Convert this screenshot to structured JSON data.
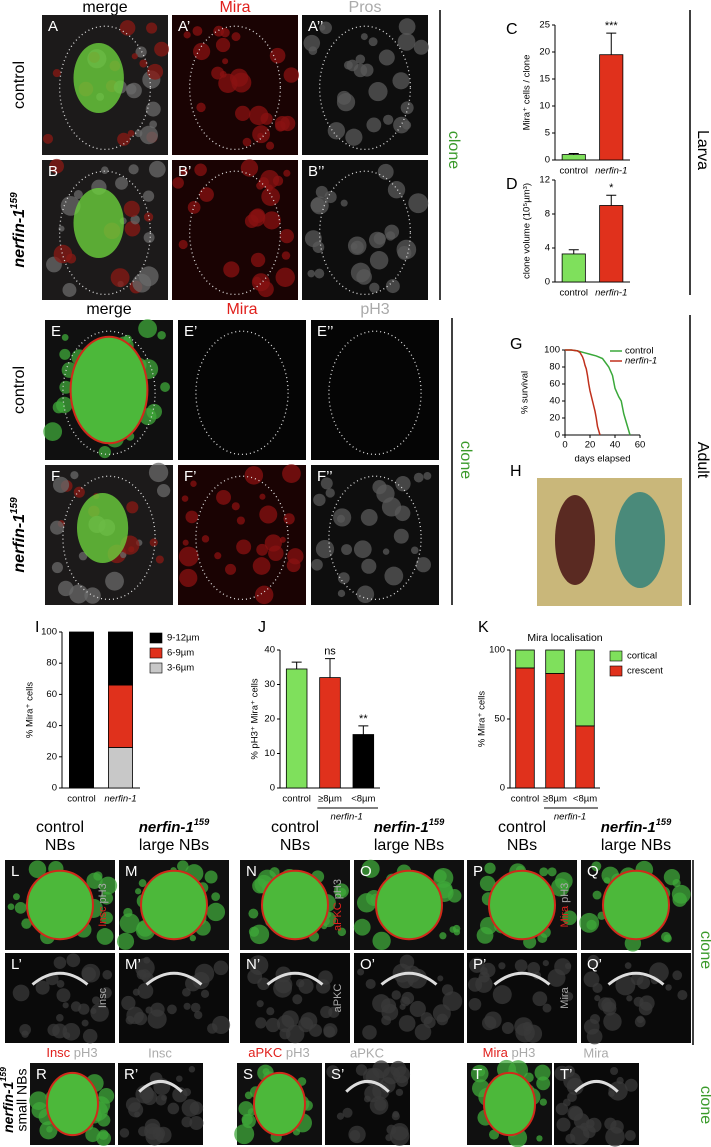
{
  "top": {
    "headers": [
      "merge",
      "Mira",
      "Pros"
    ],
    "panels": [
      "A",
      "A’",
      "A’’",
      "B",
      "B’",
      "B’’"
    ],
    "rows": [
      {
        "text": "control"
      },
      {
        "gene": "nerfin-1",
        "allele": "159"
      }
    ],
    "side": "clone",
    "stage": "Larva"
  },
  "middle": {
    "headers": [
      "merge",
      "Mira",
      "pH3"
    ],
    "panels": [
      "E",
      "E’",
      "E’’",
      "F",
      "F’",
      "F’’"
    ],
    "rows": [
      {
        "text": "control"
      },
      {
        "gene": "nerfin-1",
        "allele": "159"
      }
    ],
    "side": "clone",
    "stage": "Adult",
    "photo": "H"
  },
  "bottom": {
    "headers": [
      {
        "line1": "control",
        "line2": "NBs"
      },
      {
        "gene": "nerfin-1",
        "allele": "159",
        "line2": "large NBs"
      },
      {
        "line1": "control",
        "line2": "NBs"
      },
      {
        "gene": "nerfin-1",
        "allele": "159",
        "line2": "large NBs"
      },
      {
        "line1": "control",
        "line2": "NBs"
      },
      {
        "gene": "nerfin-1",
        "allele": "159",
        "line2": "large NBs"
      }
    ],
    "panels": [
      "L",
      "M",
      "N",
      "O",
      "P",
      "Q",
      "L’",
      "M’",
      "N’",
      "O’",
      "P’",
      "Q’"
    ],
    "channels": [
      {
        "marker": "Insc",
        "stain": "pH3"
      },
      {
        "marker": "aPKC",
        "stain": "pH3"
      },
      {
        "marker": "Mira",
        "stain": "pH3"
      }
    ],
    "side": "clone",
    "small": {
      "row_label": {
        "gene": "nerfin-1",
        "allele": "159",
        "line2": "small NBs"
      },
      "panels": [
        "R",
        "R’",
        "S",
        "S’",
        "T",
        "T’"
      ],
      "side": "clone"
    }
  },
  "chart_data": [
    {
      "type": "bar",
      "panel": "C",
      "ylabel": "Mira⁺ cells / clone",
      "categories": [
        "control",
        "nerfin-1"
      ],
      "values": [
        1,
        19.5
      ],
      "errors": [
        0.2,
        4
      ],
      "colors": [
        "#7fe05c",
        "#e0311c"
      ],
      "annotations": [
        null,
        "***"
      ],
      "ylim": [
        0,
        25
      ],
      "yticks": [
        0,
        5,
        10,
        15,
        20,
        25
      ]
    },
    {
      "type": "bar",
      "panel": "D",
      "ylabel": "clone volume (10⁵µm³)",
      "categories": [
        "control",
        "nerfin-1"
      ],
      "values": [
        3.3,
        9
      ],
      "errors": [
        0.5,
        1.2
      ],
      "colors": [
        "#7fe05c",
        "#e0311c"
      ],
      "annotations": [
        null,
        "*"
      ],
      "ylim": [
        0,
        12
      ],
      "yticks": [
        0,
        4,
        8,
        12
      ]
    },
    {
      "type": "line",
      "panel": "G",
      "ylabel": "% survival",
      "xlabel": "days elapsed",
      "legend": "top-right",
      "series": [
        {
          "name": "control",
          "color": "#3aa83a",
          "x": [
            0,
            5,
            10,
            15,
            20,
            25,
            30,
            35,
            38,
            40,
            43,
            45,
            47,
            48,
            50,
            52
          ],
          "values": [
            100,
            100,
            99,
            97,
            95,
            93,
            90,
            80,
            70,
            55,
            45,
            40,
            25,
            20,
            10,
            0
          ]
        },
        {
          "name": "nerfin-1",
          "color": "#c0301c",
          "x": [
            0,
            5,
            10,
            12,
            14,
            15,
            16,
            17,
            18,
            19,
            20,
            22,
            24,
            25,
            26,
            28
          ],
          "values": [
            100,
            100,
            99,
            97,
            92,
            88,
            82,
            78,
            70,
            60,
            52,
            40,
            28,
            20,
            10,
            0
          ]
        }
      ],
      "xlim": [
        0,
        60
      ],
      "xticks": [
        0,
        20,
        40,
        60
      ],
      "ylim": [
        0,
        100
      ],
      "yticks": [
        0,
        20,
        40,
        60,
        80,
        100
      ]
    },
    {
      "type": "stacked_bar",
      "panel": "I",
      "ylabel": "% Mira⁺ cells",
      "categories": [
        "control",
        "nerfin-1"
      ],
      "series": [
        {
          "name": "3-6µm",
          "color": "#c8c8c8",
          "values": [
            0,
            26
          ]
        },
        {
          "name": "6-9µm",
          "color": "#e0311c",
          "values": [
            0,
            40
          ]
        },
        {
          "name": "9-12µm",
          "color": "#000000",
          "values": [
            100,
            34
          ]
        }
      ],
      "ylim": [
        0,
        100
      ],
      "yticks": [
        0,
        20,
        40,
        60,
        80,
        100
      ]
    },
    {
      "type": "bar",
      "panel": "J",
      "ylabel": "% pH3⁺ Mira⁺ cells",
      "categories": [
        "control",
        "≥8µm",
        "<8µm"
      ],
      "group_label": "nerfin-1",
      "values": [
        34.5,
        32,
        15.5
      ],
      "errors": [
        2,
        5.5,
        2.5
      ],
      "colors": [
        "#7fe05c",
        "#e0311c",
        "#000000"
      ],
      "annotations": [
        null,
        "ns",
        "**"
      ],
      "ylim": [
        0,
        40
      ],
      "yticks": [
        0,
        10,
        20,
        30,
        40
      ]
    },
    {
      "type": "stacked_bar",
      "panel": "K",
      "title": "Mira localisation",
      "ylabel": "% Mira⁺ cells",
      "categories": [
        "control",
        "≥8µm",
        "<8µm"
      ],
      "group_label": "nerfin-1",
      "series": [
        {
          "name": "crescent",
          "color": "#e0311c",
          "values": [
            87,
            83,
            45
          ]
        },
        {
          "name": "cortical",
          "color": "#7fe05c",
          "values": [
            13,
            17,
            55
          ]
        }
      ],
      "ylim": [
        0,
        100
      ],
      "yticks": [
        0,
        50,
        100
      ]
    }
  ]
}
